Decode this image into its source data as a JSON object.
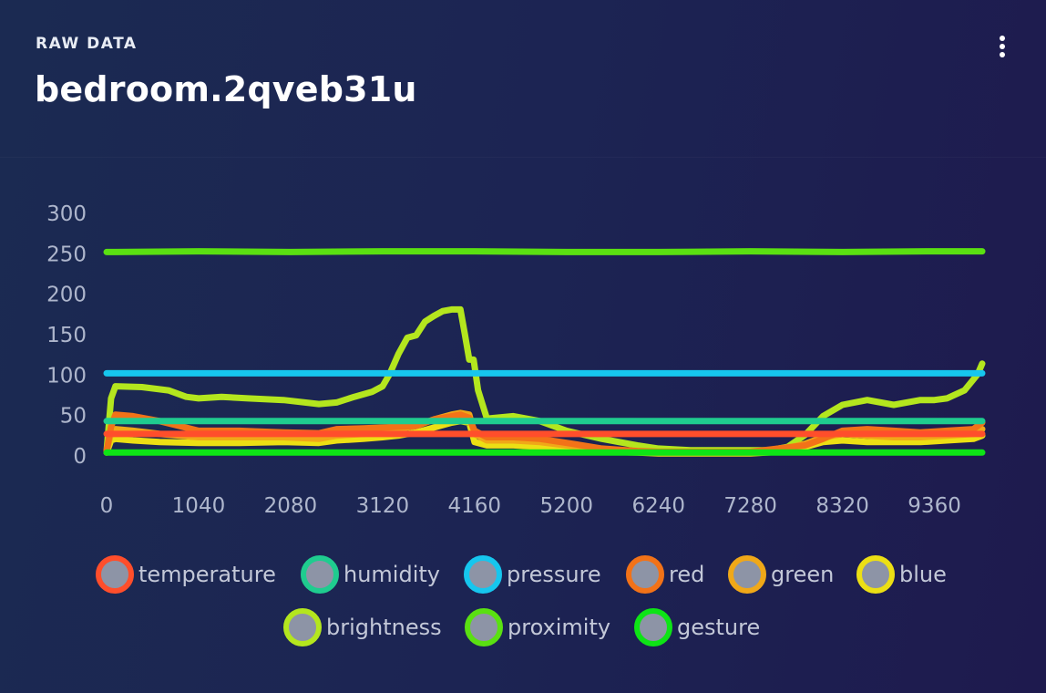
{
  "header": {
    "label": "RAW DATA",
    "title": "bedroom.2qveb31u"
  },
  "chart_data": {
    "type": "line",
    "xlim": [
      0,
      9900
    ],
    "ylim": [
      0,
      300
    ],
    "x_ticks": [
      0,
      1040,
      2080,
      3120,
      4160,
      5200,
      6240,
      7280,
      8320,
      9360
    ],
    "y_ticks": [
      0,
      50,
      100,
      150,
      200,
      250,
      300
    ],
    "grid": false,
    "legend_position": "bottom",
    "series": [
      {
        "name": "temperature",
        "color": "#ff4e2b",
        "x": [
          0,
          9900
        ],
        "y": [
          26,
          26
        ]
      },
      {
        "name": "humidity",
        "color": "#1fcc8f",
        "x": [
          0,
          9900
        ],
        "y": [
          42,
          42
        ]
      },
      {
        "name": "pressure",
        "color": "#16c6ee",
        "x": [
          0,
          9900
        ],
        "y": [
          101,
          101
        ]
      },
      {
        "name": "red",
        "color": "#f27218",
        "x": [
          0,
          50,
          100,
          300,
          600,
          1040,
          1500,
          2000,
          2400,
          2600,
          2900,
          3120,
          3300,
          3500,
          3700,
          3900,
          4000,
          4100,
          4160,
          4300,
          4600,
          4900,
          5200,
          5600,
          6000,
          6240,
          6600,
          7000,
          7280,
          7600,
          7900,
          8100,
          8320,
          8600,
          8900,
          9200,
          9500,
          9800,
          9900
        ],
        "y": [
          5,
          35,
          50,
          48,
          42,
          30,
          30,
          28,
          27,
          32,
          33,
          34,
          35,
          36,
          44,
          48,
          50,
          46,
          30,
          22,
          22,
          20,
          15,
          8,
          5,
          4,
          4,
          4,
          4,
          8,
          12,
          20,
          30,
          32,
          30,
          28,
          30,
          32,
          40
        ]
      },
      {
        "name": "green",
        "color": "#f0a818",
        "x": [
          0,
          50,
          100,
          300,
          600,
          1040,
          1500,
          2000,
          2400,
          2600,
          2900,
          3120,
          3300,
          3500,
          3700,
          3900,
          4000,
          4100,
          4160,
          4300,
          4600,
          4900,
          5200,
          5600,
          6000,
          6240,
          6600,
          7000,
          7280,
          7600,
          7900,
          8100,
          8320,
          8600,
          8900,
          9200,
          9500,
          9800,
          9900
        ],
        "y": [
          4,
          28,
          32,
          30,
          26,
          22,
          22,
          22,
          20,
          24,
          26,
          28,
          32,
          36,
          44,
          50,
          52,
          50,
          26,
          18,
          18,
          16,
          12,
          6,
          4,
          3,
          3,
          3,
          3,
          6,
          14,
          22,
          26,
          24,
          22,
          22,
          24,
          26,
          32
        ]
      },
      {
        "name": "blue",
        "color": "#ecdf14",
        "x": [
          0,
          50,
          100,
          300,
          600,
          1040,
          1500,
          2000,
          2400,
          2600,
          2900,
          3120,
          3300,
          3500,
          3700,
          3900,
          4000,
          4100,
          4160,
          4300,
          4600,
          4900,
          5200,
          5600,
          6000,
          6240,
          6600,
          7000,
          7280,
          7600,
          7900,
          8100,
          8320,
          8600,
          8900,
          9200,
          9500,
          9800,
          9900
        ],
        "y": [
          3,
          18,
          20,
          18,
          16,
          15,
          15,
          16,
          15,
          18,
          20,
          22,
          24,
          28,
          34,
          40,
          42,
          40,
          16,
          12,
          12,
          10,
          8,
          4,
          3,
          2,
          2,
          2,
          2,
          4,
          10,
          16,
          18,
          16,
          16,
          16,
          18,
          20,
          24
        ]
      },
      {
        "name": "brightness",
        "color": "#b4e61e",
        "x": [
          0,
          50,
          100,
          400,
          700,
          900,
          1040,
          1300,
          1600,
          2000,
          2400,
          2600,
          2800,
          3000,
          3120,
          3200,
          3300,
          3400,
          3500,
          3600,
          3700,
          3800,
          3900,
          4000,
          4050,
          4100,
          4150,
          4200,
          4300,
          4600,
          4900,
          5200,
          5600,
          6000,
          6240,
          6600,
          7000,
          7280,
          7500,
          7700,
          7900,
          8100,
          8320,
          8600,
          8900,
          9200,
          9360,
          9500,
          9700,
          9850,
          9900
        ],
        "y": [
          5,
          70,
          85,
          84,
          80,
          72,
          70,
          72,
          70,
          68,
          63,
          65,
          72,
          78,
          85,
          100,
          125,
          145,
          148,
          165,
          172,
          178,
          180,
          180,
          150,
          118,
          118,
          80,
          45,
          48,
          42,
          30,
          20,
          12,
          8,
          6,
          6,
          6,
          6,
          10,
          25,
          48,
          62,
          68,
          62,
          68,
          68,
          70,
          80,
          100,
          113
        ]
      },
      {
        "name": "proximity",
        "color": "#5ae012",
        "x": [
          0,
          1040,
          2080,
          3120,
          4160,
          5200,
          6240,
          7280,
          8320,
          9360,
          9900
        ],
        "y": [
          251,
          252,
          251,
          252,
          252,
          251,
          251,
          252,
          251,
          252,
          252
        ]
      },
      {
        "name": "gesture",
        "color": "#0ee416",
        "x": [
          0,
          9900
        ],
        "y": [
          3,
          3
        ]
      }
    ]
  }
}
